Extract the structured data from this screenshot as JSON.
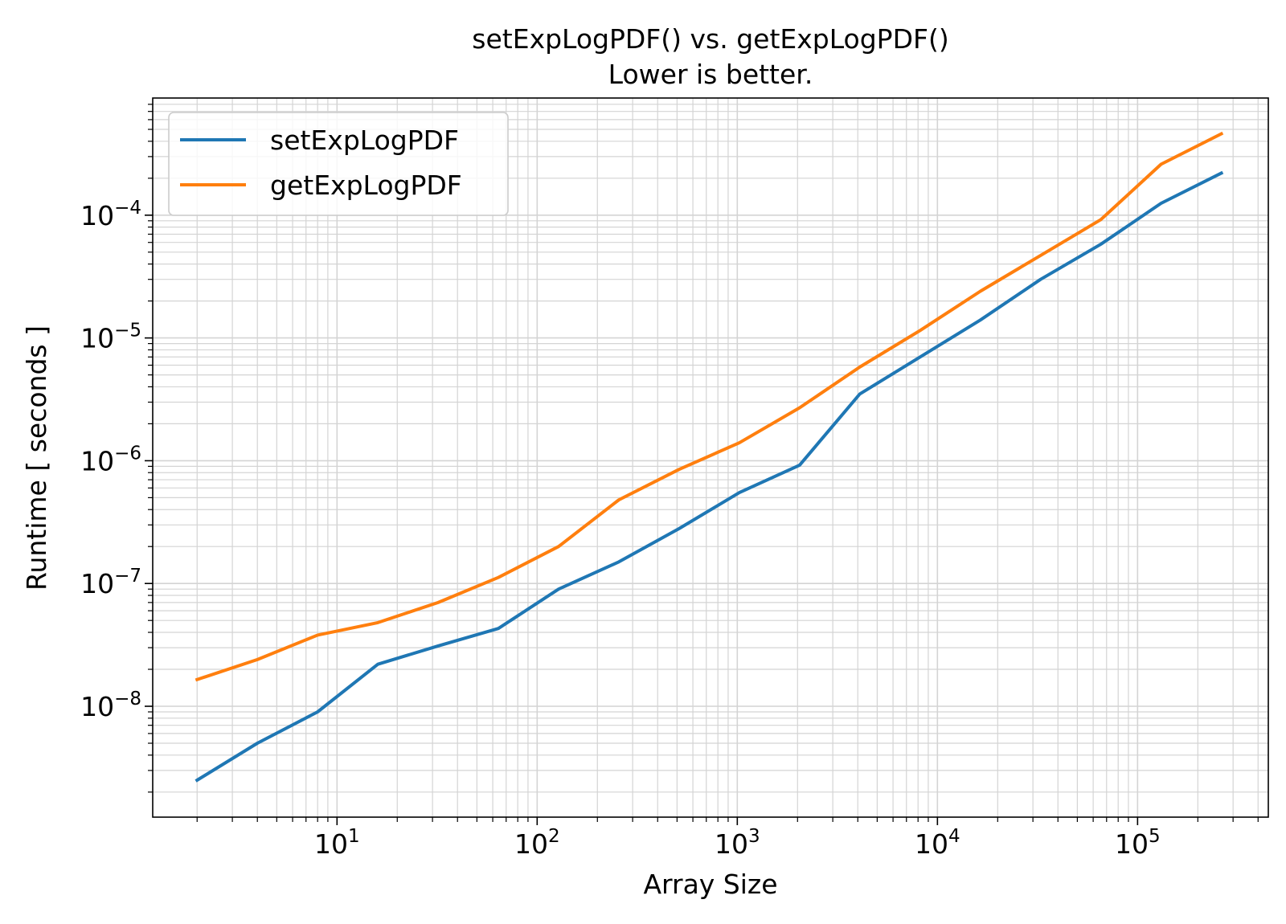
{
  "chart_data": {
    "type": "line",
    "title": "setExpLogPDF() vs. getExpLogPDF()",
    "subtitle": "Lower is better.",
    "xlabel": "Array Size",
    "ylabel": "Runtime [ seconds ]",
    "xscale": "log",
    "yscale": "log",
    "xlim": [
      1.2,
      450000
    ],
    "ylim": [
      1.25e-09,
      0.0009
    ],
    "grid": "on (major and minor)",
    "legend_placement": "top-left",
    "x_tick_labels": [
      {
        "value": 10,
        "base": "10",
        "exp": "1"
      },
      {
        "value": 100,
        "base": "10",
        "exp": "2"
      },
      {
        "value": 1000,
        "base": "10",
        "exp": "3"
      },
      {
        "value": 10000,
        "base": "10",
        "exp": "4"
      },
      {
        "value": 100000,
        "base": "10",
        "exp": "5"
      }
    ],
    "y_tick_labels": [
      {
        "value": 1e-08,
        "base": "10",
        "exp": "−8"
      },
      {
        "value": 1e-07,
        "base": "10",
        "exp": "−7"
      },
      {
        "value": 1e-06,
        "base": "10",
        "exp": "−6"
      },
      {
        "value": 1e-05,
        "base": "10",
        "exp": "−5"
      },
      {
        "value": 0.0001,
        "base": "10",
        "exp": "−4"
      }
    ],
    "x": [
      2,
      4,
      8,
      16,
      32,
      64,
      128,
      256,
      512,
      1024,
      2048,
      4096,
      8192,
      16384,
      32768,
      65536,
      131072,
      262144
    ],
    "series": [
      {
        "name": "setExpLogPDF",
        "color": "#1f77b4",
        "values": [
          2.5e-09,
          5e-09,
          9e-09,
          2.2e-08,
          3.1e-08,
          4.3e-08,
          9e-08,
          1.5e-07,
          2.8e-07,
          5.5e-07,
          9.2e-07,
          3.5e-06,
          7e-06,
          1.4e-05,
          3e-05,
          5.8e-05,
          0.000125,
          0.00022
        ]
      },
      {
        "name": "getExpLogPDF",
        "color": "#ff7f0e",
        "values": [
          1.65e-08,
          2.4e-08,
          3.8e-08,
          4.8e-08,
          7e-08,
          1.12e-07,
          2e-07,
          4.8e-07,
          8.5e-07,
          1.4e-06,
          2.7e-06,
          5.8e-06,
          1.15e-05,
          2.4e-05,
          4.7e-05,
          9.2e-05,
          0.00026,
          0.00046
        ]
      }
    ]
  }
}
